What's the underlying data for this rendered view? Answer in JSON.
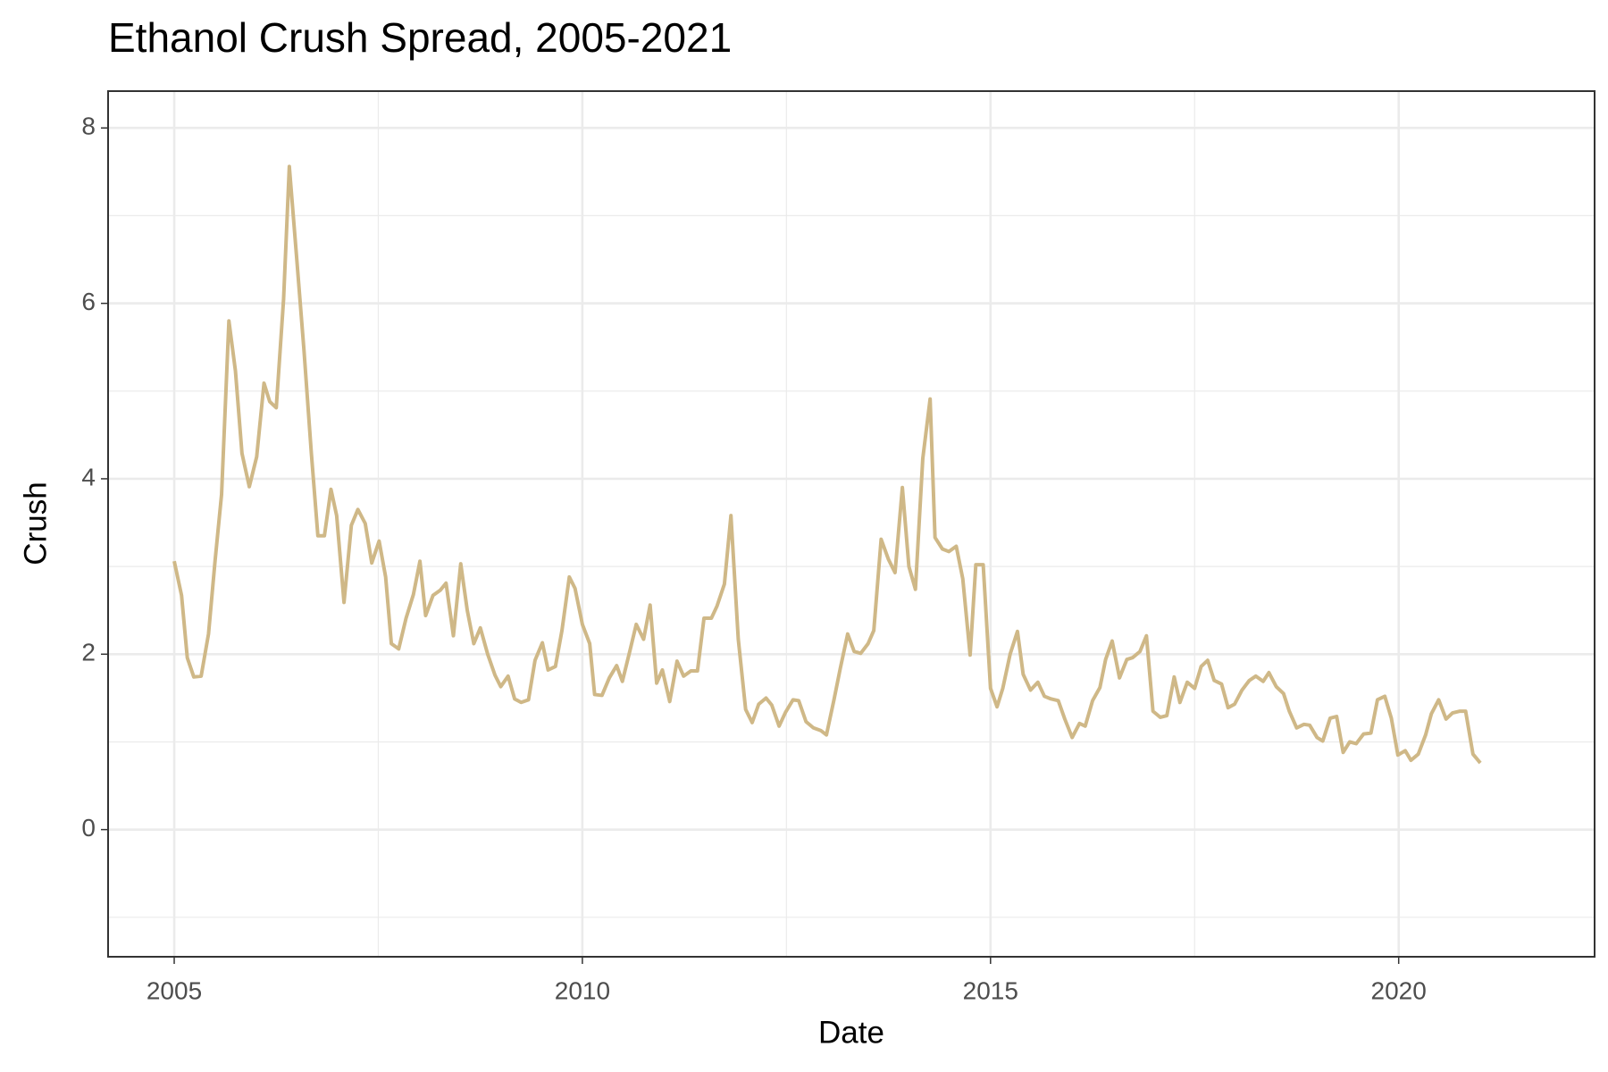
{
  "chart_data": {
    "type": "line",
    "title": "Ethanol Crush Spread, 2005-2021",
    "xlabel": "Date",
    "ylabel": "Crush",
    "color": "#cfb887",
    "grid": true,
    "xlim": [
      2004.19,
      2022.4
    ],
    "ylim": [
      -1.45,
      8.42
    ],
    "xticks": [
      2005,
      2010,
      2015,
      2020
    ],
    "yticks": [
      0,
      2,
      4,
      6,
      8
    ],
    "x": [
      2005.0,
      2005.09,
      2005.16,
      2005.24,
      2005.33,
      2005.42,
      2005.5,
      2005.58,
      2005.67,
      2005.75,
      2005.83,
      2005.92,
      2006.01,
      2006.1,
      2006.17,
      2006.25,
      2006.34,
      2006.41,
      2006.5,
      2006.59,
      2006.68,
      2006.76,
      2006.84,
      2006.92,
      2006.99,
      2007.08,
      2007.17,
      2007.25,
      2007.34,
      2007.42,
      2007.51,
      2007.59,
      2007.66,
      2007.75,
      2007.84,
      2007.93,
      2008.01,
      2008.08,
      2008.17,
      2008.26,
      2008.33,
      2008.42,
      2008.51,
      2008.59,
      2008.67,
      2008.75,
      2008.84,
      2008.93,
      2009.0,
      2009.09,
      2009.17,
      2009.25,
      2009.34,
      2009.42,
      2009.51,
      2009.58,
      2009.67,
      2009.75,
      2009.84,
      2009.91,
      2010.0,
      2010.09,
      2010.15,
      2010.24,
      2010.33,
      2010.42,
      2010.49,
      2010.58,
      2010.66,
      2010.75,
      2010.83,
      2010.91,
      2010.98,
      2011.07,
      2011.16,
      2011.24,
      2011.33,
      2011.41,
      2011.49,
      2011.58,
      2011.65,
      2011.74,
      2011.82,
      2011.91,
      2012.0,
      2012.08,
      2012.16,
      2012.25,
      2012.32,
      2012.41,
      2012.49,
      2012.58,
      2012.65,
      2012.74,
      2012.83,
      2012.92,
      2012.99,
      2013.08,
      2013.16,
      2013.25,
      2013.33,
      2013.41,
      2013.5,
      2013.57,
      2013.66,
      2013.75,
      2013.83,
      2013.92,
      2014.0,
      2014.08,
      2014.17,
      2014.26,
      2014.32,
      2014.41,
      2014.49,
      2014.58,
      2014.66,
      2014.75,
      2014.82,
      2014.91,
      2015.0,
      2015.08,
      2015.15,
      2015.24,
      2015.33,
      2015.4,
      2015.49,
      2015.58,
      2015.66,
      2015.74,
      2015.83,
      2015.91,
      2016.0,
      2016.09,
      2016.16,
      2016.25,
      2016.34,
      2016.41,
      2016.49,
      2016.58,
      2016.67,
      2016.74,
      2016.83,
      2016.91,
      2016.99,
      2017.08,
      2017.16,
      2017.25,
      2017.32,
      2017.41,
      2017.5,
      2017.58,
      2017.66,
      2017.74,
      2017.83,
      2017.91,
      2017.99,
      2018.08,
      2018.17,
      2018.25,
      2018.34,
      2018.41,
      2018.5,
      2018.59,
      2018.66,
      2018.75,
      2018.84,
      2018.91,
      2019.0,
      2019.07,
      2019.16,
      2019.24,
      2019.32,
      2019.4,
      2019.48,
      2019.57,
      2019.66,
      2019.74,
      2019.83,
      2019.91,
      2019.99,
      2020.08,
      2020.15,
      2020.24,
      2020.33,
      2020.4,
      2020.49,
      2020.58,
      2020.66,
      2020.75,
      2020.82,
      2020.91,
      2021.0
    ],
    "values": [
      3.06,
      2.67,
      1.96,
      1.74,
      1.75,
      2.23,
      3.06,
      3.82,
      5.8,
      5.23,
      4.29,
      3.91,
      4.25,
      5.09,
      4.88,
      4.81,
      6.05,
      7.56,
      6.52,
      5.46,
      4.29,
      3.35,
      3.35,
      3.88,
      3.58,
      2.59,
      3.47,
      3.65,
      3.49,
      3.04,
      3.29,
      2.88,
      2.12,
      2.06,
      2.41,
      2.68,
      3.06,
      2.44,
      2.67,
      2.73,
      2.81,
      2.21,
      3.03,
      2.5,
      2.12,
      2.3,
      2.0,
      1.76,
      1.63,
      1.75,
      1.49,
      1.45,
      1.48,
      1.93,
      2.13,
      1.82,
      1.86,
      2.27,
      2.88,
      2.75,
      2.34,
      2.12,
      1.54,
      1.53,
      1.73,
      1.87,
      1.69,
      2.03,
      2.34,
      2.17,
      2.56,
      1.67,
      1.82,
      1.46,
      1.92,
      1.75,
      1.81,
      1.81,
      2.41,
      2.41,
      2.55,
      2.8,
      3.58,
      2.17,
      1.37,
      1.22,
      1.43,
      1.5,
      1.42,
      1.18,
      1.34,
      1.48,
      1.47,
      1.23,
      1.16,
      1.13,
      1.08,
      1.47,
      1.84,
      2.23,
      2.03,
      2.01,
      2.12,
      2.27,
      3.31,
      3.08,
      2.93,
      3.9,
      3.0,
      2.74,
      4.23,
      4.91,
      3.33,
      3.2,
      3.17,
      3.23,
      2.86,
      1.99,
      3.02,
      3.02,
      1.61,
      1.4,
      1.61,
      2.0,
      2.26,
      1.77,
      1.59,
      1.68,
      1.52,
      1.49,
      1.47,
      1.26,
      1.05,
      1.21,
      1.18,
      1.47,
      1.62,
      1.94,
      2.15,
      1.73,
      1.94,
      1.96,
      2.03,
      2.21,
      1.35,
      1.28,
      1.3,
      1.74,
      1.45,
      1.68,
      1.61,
      1.86,
      1.93,
      1.7,
      1.66,
      1.39,
      1.43,
      1.59,
      1.7,
      1.75,
      1.69,
      1.79,
      1.63,
      1.55,
      1.35,
      1.16,
      1.2,
      1.19,
      1.05,
      1.01,
      1.27,
      1.29,
      0.88,
      1.0,
      0.98,
      1.09,
      1.1,
      1.48,
      1.52,
      1.27,
      0.85,
      0.9,
      0.79,
      0.86,
      1.08,
      1.32,
      1.48,
      1.26,
      1.33,
      1.35,
      1.35,
      0.86,
      0.76
    ]
  }
}
